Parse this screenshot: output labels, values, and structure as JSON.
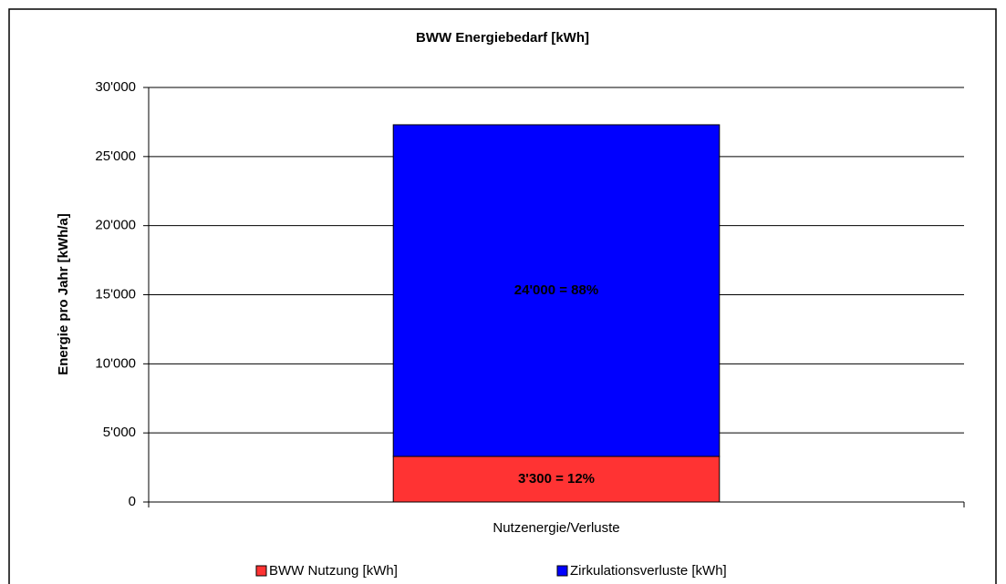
{
  "chart_data": {
    "type": "stacked_bar",
    "title": "BWW Energiebedarf  [kWh]",
    "y_label": "Energie pro Jahr [kWh/a]",
    "categories": [
      "Nutzenergie/Verluste"
    ],
    "series": [
      {
        "name": "BWW Nutzung [kWh]",
        "color": "#ff3333",
        "values": [
          3300
        ],
        "value_labels": [
          "3'300 = 12%"
        ]
      },
      {
        "name": "Zirkulationsverluste [kWh]",
        "color": "#0000ff",
        "values": [
          24000
        ],
        "value_labels": [
          "24'000 = 88%"
        ]
      }
    ],
    "ylim": [
      0,
      30000
    ],
    "yticks": [
      0,
      {
        "value": 5000,
        "label": "5'000"
      },
      {
        "value": 10000,
        "label": "10'000"
      },
      {
        "value": 15000,
        "label": "15'000"
      },
      {
        "value": 20000,
        "label": "20'000"
      },
      {
        "value": 25000,
        "label": "25'000"
      },
      {
        "value": 30000,
        "label": "30'000"
      }
    ],
    "grid": true
  }
}
